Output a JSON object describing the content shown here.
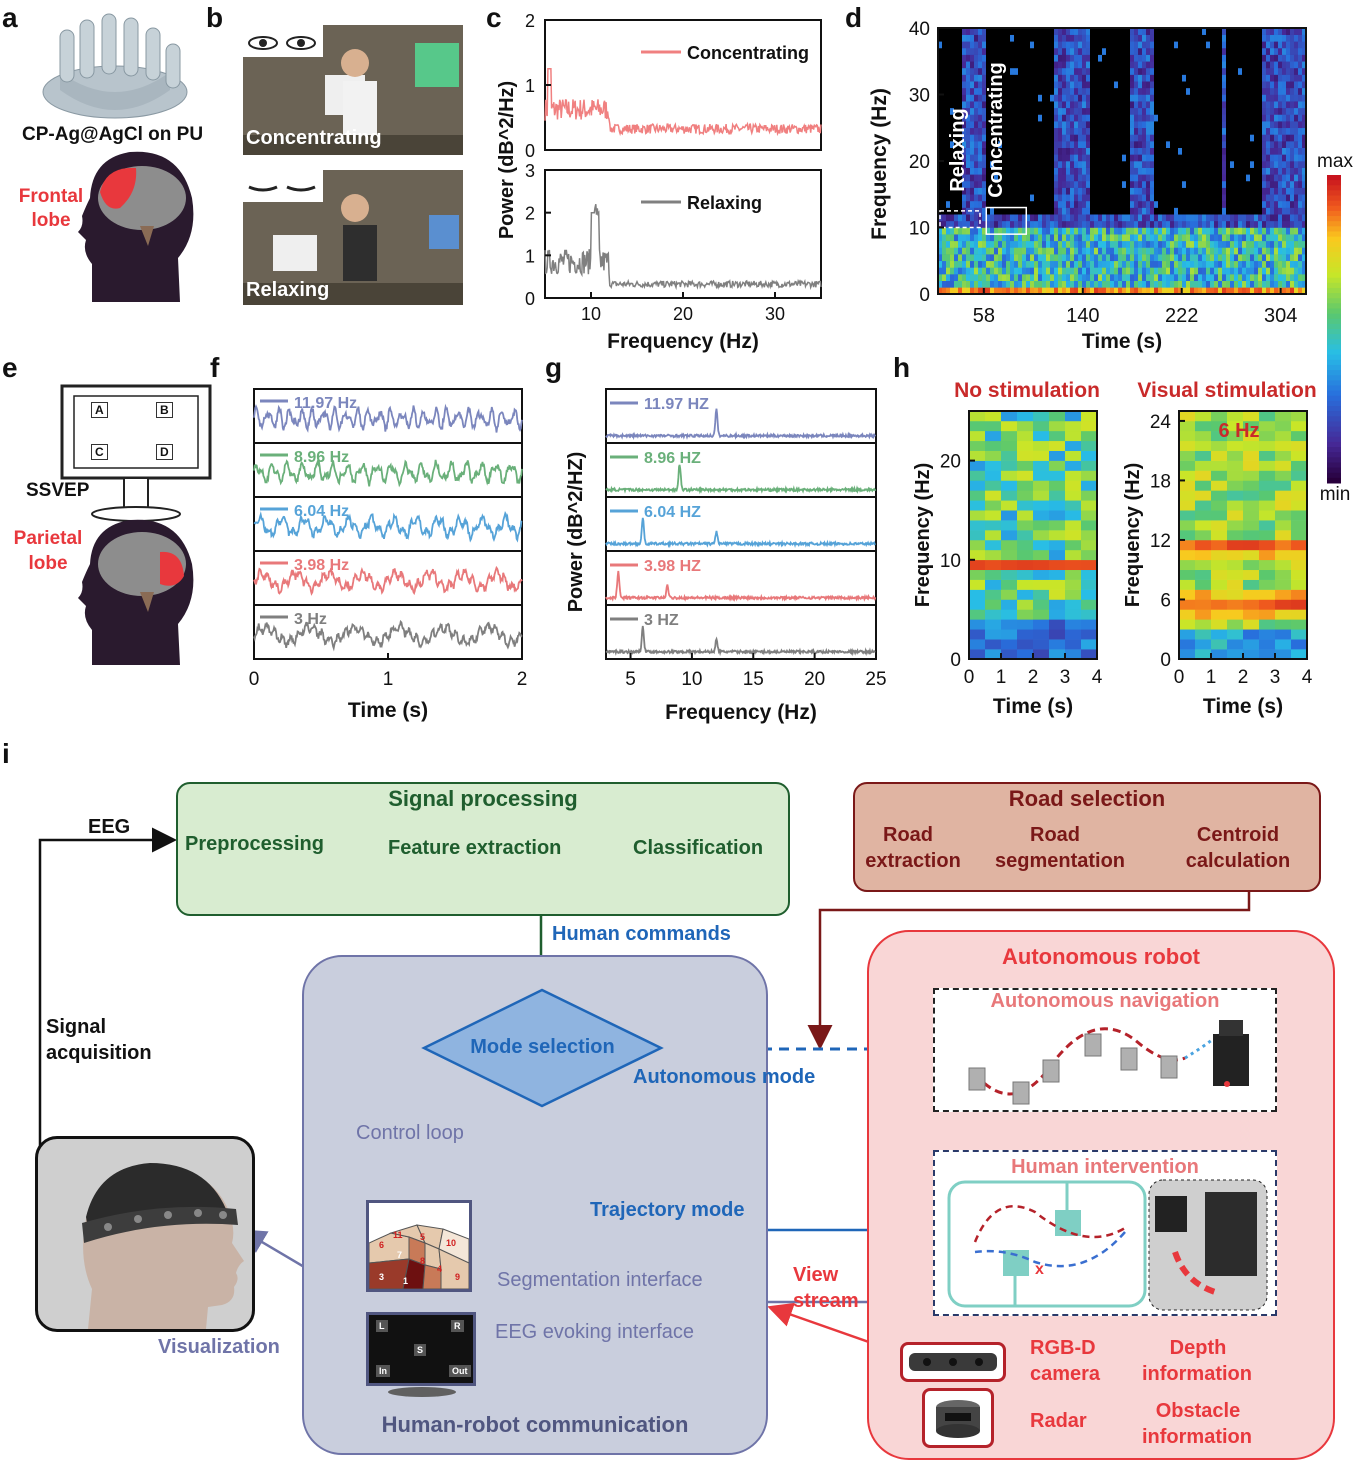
{
  "panel_letters": [
    "a",
    "b",
    "c",
    "d",
    "e",
    "f",
    "g",
    "h",
    "i"
  ],
  "panel_a": {
    "electrode_label": "CP-Ag@AgCl on PU",
    "region_label_1": "Frontal",
    "region_label_2": "lobe"
  },
  "panel_b": {
    "photo_top_label": "Concentrating",
    "photo_bottom_label": "Relaxing"
  },
  "panel_e": {
    "screen_keys": [
      "A",
      "B",
      "C",
      "D"
    ],
    "ssvep_label": "SSVEP",
    "region_label_1": "Parietal",
    "region_label_2": "lobe"
  },
  "colors": {
    "concentrating": "#f08080",
    "relaxing": "#808080",
    "accent_red": "#e8383d",
    "signal_green": "#1f5e2e",
    "road_brown": "#7a1818",
    "hrc_purple": "#6f74a8",
    "command_blue": "#1f66b8"
  },
  "chart_data": [
    {
      "id": "c",
      "type": "line",
      "xlabel": "Frequency (Hz)",
      "ylabel": "Power (dB^2/Hz)",
      "x_ticks": [
        10,
        20,
        30
      ],
      "xlim": [
        5,
        35
      ],
      "series": [
        {
          "name": "Concentrating",
          "ylim": [
            0,
            2
          ],
          "y_ticks": [
            0,
            1,
            2
          ],
          "peak_x": 5.5,
          "peak_y": 1.25,
          "baseline": 0.25
        },
        {
          "name": "Relaxing",
          "ylim": [
            0,
            3
          ],
          "y_ticks": [
            0,
            1,
            2,
            3
          ],
          "peak_x": 10.5,
          "peak_y": 2.3,
          "baseline": 0.25
        }
      ]
    },
    {
      "id": "d",
      "type": "heatmap",
      "xlabel": "Time (s)",
      "ylabel": "Frequency (Hz)",
      "x_ticks": [
        58,
        140,
        222,
        304
      ],
      "y_ticks": [
        0,
        10,
        20,
        30,
        40
      ],
      "ylim": [
        0,
        40
      ],
      "annotations": [
        "Relaxing",
        "Concentrating"
      ],
      "colorbar": {
        "max_label": "max",
        "min_label": "min"
      }
    },
    {
      "id": "f",
      "type": "line",
      "xlabel": "Time (s)",
      "x_ticks": [
        0,
        1,
        2
      ],
      "xlim": [
        0,
        2
      ],
      "series": [
        {
          "name": "11.97 Hz",
          "color": "#7b86bd"
        },
        {
          "name": "8.96 Hz",
          "color": "#6ab07a"
        },
        {
          "name": "6.04 Hz",
          "color": "#56a3d8"
        },
        {
          "name": "3.98 Hz",
          "color": "#e8787a"
        },
        {
          "name": "3 Hz",
          "color": "#7f7f7f"
        }
      ]
    },
    {
      "id": "g",
      "type": "line",
      "xlabel": "Frequency (Hz)",
      "ylabel": "Power (dB^2/HZ)",
      "x_ticks": [
        5,
        10,
        15,
        20,
        25
      ],
      "xlim": [
        3,
        25
      ],
      "series": [
        {
          "name": "11.97 HZ",
          "color": "#7b86bd",
          "peaks": [
            12
          ]
        },
        {
          "name": "8.96 HZ",
          "color": "#6ab07a",
          "peaks": [
            9
          ]
        },
        {
          "name": "6.04 HZ",
          "color": "#56a3d8",
          "peaks": [
            6,
            12
          ]
        },
        {
          "name": "3.98 HZ",
          "color": "#e8787a",
          "peaks": [
            4,
            8
          ]
        },
        {
          "name": "3 HZ",
          "color": "#7f7f7f",
          "peaks": [
            6,
            12
          ]
        }
      ]
    },
    {
      "id": "h1",
      "type": "heatmap",
      "title": "No stimulation",
      "xlabel": "Time (s)",
      "ylabel": "Frequency (Hz)",
      "x_ticks": [
        0,
        1,
        2,
        3,
        4
      ],
      "y_ticks": [
        0,
        10,
        20
      ],
      "ylim": [
        0,
        25
      ]
    },
    {
      "id": "h2",
      "type": "heatmap",
      "title": "Visual stimulation",
      "annotation": "6 Hz",
      "xlabel": "Time (s)",
      "ylabel": "Frequency (Hz)",
      "x_ticks": [
        0,
        1,
        2,
        3,
        4
      ],
      "y_ticks": [
        0,
        6,
        12,
        18,
        24
      ],
      "ylim": [
        0,
        25
      ]
    }
  ],
  "diagram": {
    "eeg_label": "EEG",
    "signal_acq_1": "Signal",
    "signal_acq_2": "acquisition",
    "signal_processing": {
      "title": "Signal processing",
      "steps": [
        "Preprocessing",
        "Feature extraction",
        "Classification"
      ]
    },
    "road_selection": {
      "title": "Road selection",
      "steps": [
        [
          "Road",
          "extraction"
        ],
        [
          "Road",
          "segmentation"
        ],
        [
          "Centroid",
          "calculation"
        ]
      ]
    },
    "human_commands": "Human commands",
    "hrc": {
      "mode_selection": "Mode selection",
      "control_loop": "Control loop",
      "segmentation_interface": "Segmentation interface",
      "eeg_evoking_interface": "EEG evoking interface",
      "title": "Human-robot communication",
      "seg_cells": [
        "6",
        "11",
        "5",
        "10",
        "7",
        "8",
        "4",
        "9",
        "3",
        "1"
      ],
      "evoke_keys": [
        "L",
        "R",
        "S",
        "In",
        "Out"
      ]
    },
    "autonomous_mode": "Autonomous mode",
    "trajectory_mode": "Trajectory mode",
    "visualization": "Visualization",
    "view_stream_1": "View",
    "view_stream_2": "stream",
    "robot": {
      "title": "Autonomous robot",
      "navigation": "Autonomous navigation",
      "intervention": "Human intervention",
      "rgbd_1": "RGB-D",
      "rgbd_2": "camera",
      "depth_1": "Depth",
      "depth_2": "information",
      "radar": "Radar",
      "obstacle_1": "Obstacle",
      "obstacle_2": "information"
    }
  }
}
